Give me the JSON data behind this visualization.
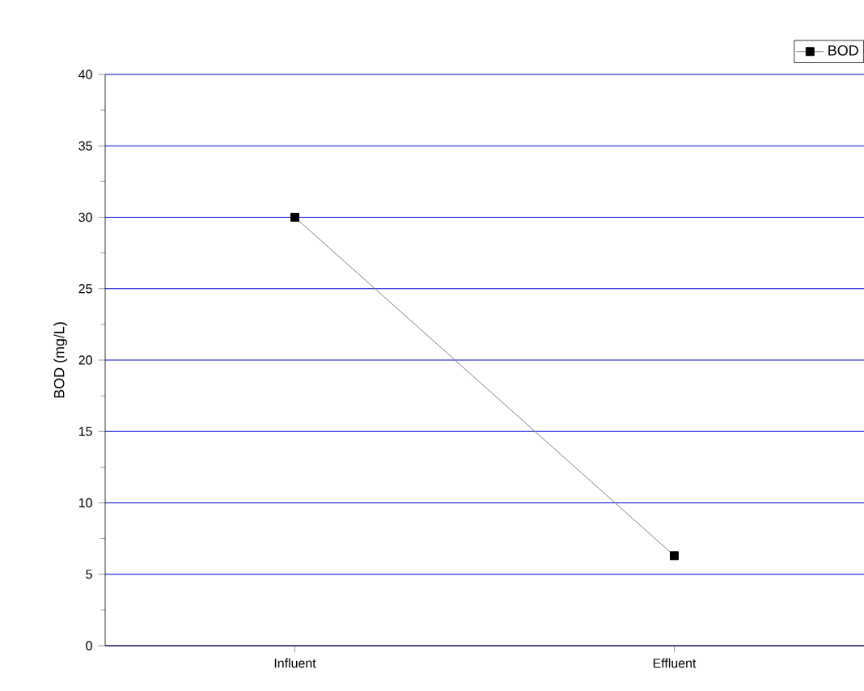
{
  "chart_data": {
    "type": "line",
    "ylabel": "BOD (mg/L)",
    "categories": [
      "Influent",
      "Effluent"
    ],
    "series": [
      {
        "name": "BOD",
        "color": "#000000",
        "values": [
          30,
          6.3
        ]
      }
    ],
    "ylim": [
      0,
      40
    ],
    "yticks": [
      0,
      5,
      10,
      15,
      20,
      25,
      30,
      35,
      40
    ],
    "grid": "y",
    "legend": "top right",
    "marker": "square",
    "line_style": "solid"
  }
}
